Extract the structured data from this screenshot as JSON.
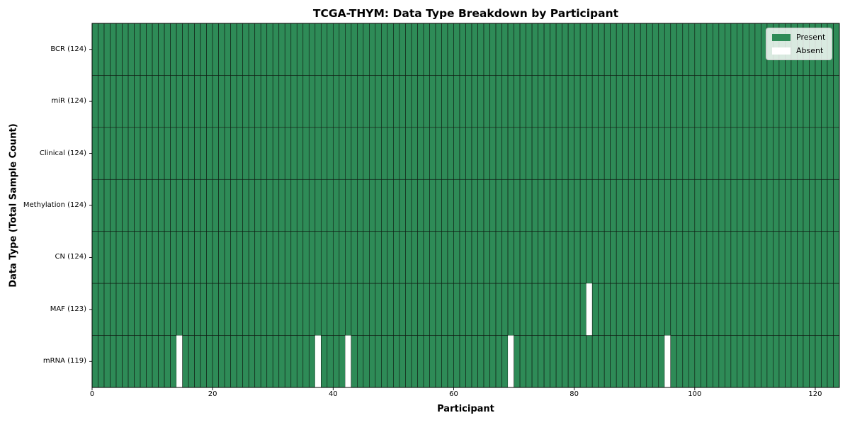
{
  "chart_data": {
    "type": "heatmap",
    "title": "TCGA-THYM: Data Type Breakdown by Participant",
    "xlabel": "Participant",
    "ylabel": "Data Type (Total Sample Count)",
    "xlim": [
      0,
      124
    ],
    "x_ticks": [
      0,
      20,
      40,
      60,
      80,
      100,
      120
    ],
    "n_participants": 124,
    "rows": [
      {
        "label": "BCR (124)",
        "total_samples": 124,
        "absent_participants": []
      },
      {
        "label": "miR (124)",
        "total_samples": 124,
        "absent_participants": []
      },
      {
        "label": "Clinical (124)",
        "total_samples": 124,
        "absent_participants": []
      },
      {
        "label": "Methylation (124)",
        "total_samples": 124,
        "absent_participants": []
      },
      {
        "label": "CN (124)",
        "total_samples": 124,
        "absent_participants": []
      },
      {
        "label": "MAF (123)",
        "total_samples": 123,
        "absent_participants": [
          82
        ]
      },
      {
        "label": "mRNA (119)",
        "total_samples": 119,
        "absent_participants": [
          14,
          37,
          42,
          69,
          95
        ]
      }
    ],
    "legend": {
      "position": "upper-right",
      "entries": [
        {
          "label": "Present",
          "color": "#2e8b57"
        },
        {
          "label": "Absent",
          "color": "#ffffff"
        }
      ]
    },
    "colors": {
      "present": "#2e8b57",
      "absent": "#ffffff",
      "cell_edge": "#101d14",
      "spine": "#000000",
      "tick": "#000000",
      "background": "#ffffff"
    }
  }
}
